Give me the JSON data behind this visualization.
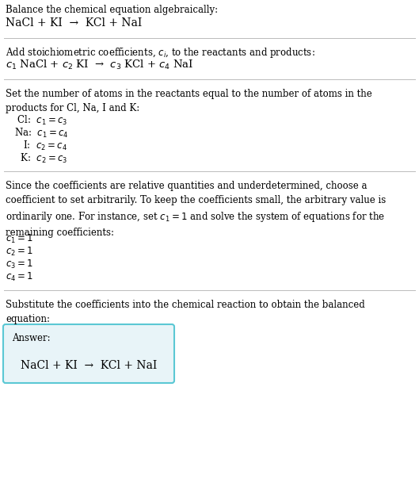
{
  "bg_color": "#ffffff",
  "text_color": "#000000",
  "section1_title": "Balance the chemical equation algebraically:",
  "section1_eq": "NaCl + KI  →  KCl + NaI",
  "section2_title": "Add stoichiometric coefficients, $c_i$, to the reactants and products:",
  "section2_eq": "$c_1$ NaCl + $c_2$ KI  →  $c_3$ KCl + $c_4$ NaI",
  "section3_title": "Set the number of atoms in the reactants equal to the number of atoms in the\nproducts for Cl, Na, I and K:",
  "section3_lines": [
    " Cl:  $c_1 = c_3$",
    "Na:  $c_1 = c_4$",
    "   I:  $c_2 = c_4$",
    "  K:  $c_2 = c_3$"
  ],
  "section4_title": "Since the coefficients are relative quantities and underdetermined, choose a\ncoefficient to set arbitrarily. To keep the coefficients small, the arbitrary value is\nordinarily one. For instance, set $c_1 = 1$ and solve the system of equations for the\nremaining coefficients:",
  "section4_lines": [
    "$c_1 = 1$",
    "$c_2 = 1$",
    "$c_3 = 1$",
    "$c_4 = 1$"
  ],
  "section5_title": "Substitute the coefficients into the chemical reaction to obtain the balanced\nequation:",
  "answer_label": "Answer:",
  "answer_eq": "NaCl + KI  →  KCl + NaI",
  "answer_box_color": "#e8f4f8",
  "answer_box_border": "#5bc8d4",
  "divider_color": "#bbbbbb",
  "font_size_body": 8.5,
  "font_size_eq": 9.5,
  "font_size_eq2": 9.0
}
